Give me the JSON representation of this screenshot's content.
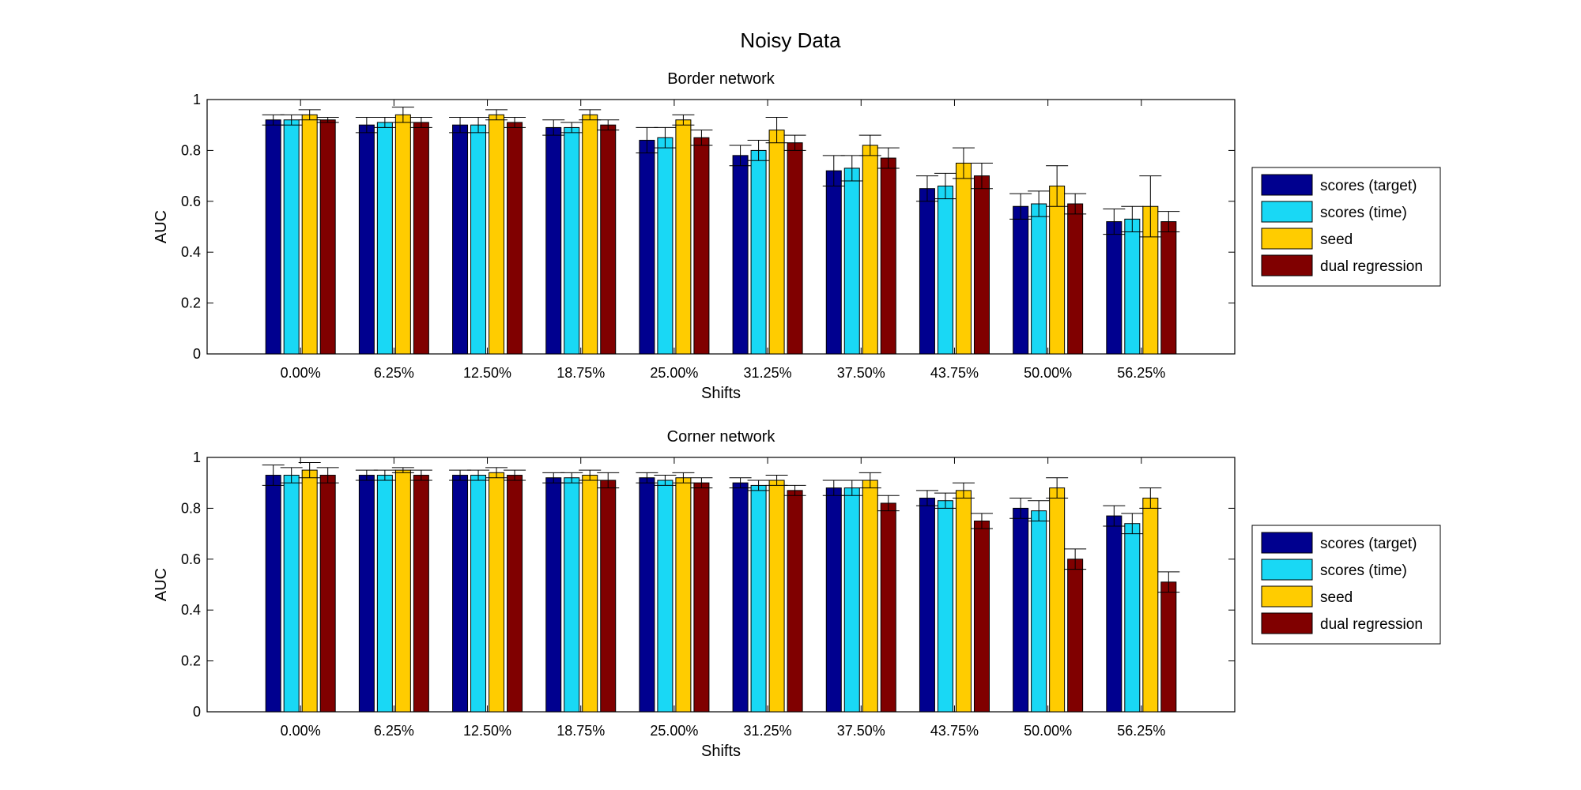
{
  "figure": {
    "title": "Noisy Data"
  },
  "colors": {
    "scores_target": "#00008f",
    "scores_time": "#19d8f5",
    "seed": "#ffcc00",
    "dual_regression": "#800000"
  },
  "chart_data": [
    {
      "type": "bar",
      "title": "Border network",
      "xlabel": "Shifts",
      "ylabel": "AUC",
      "ylim": [
        0,
        1
      ],
      "yticks": [
        "0",
        "0.2",
        "0.4",
        "0.6",
        "0.8",
        "1"
      ],
      "grid": false,
      "legend": "right",
      "categories": [
        "0.00%",
        "6.25%",
        "12.50%",
        "18.75%",
        "25.00%",
        "31.25%",
        "37.50%",
        "43.75%",
        "50.00%",
        "56.25%"
      ],
      "series": [
        {
          "name": "scores (target)",
          "values": [
            0.92,
            0.9,
            0.9,
            0.89,
            0.84,
            0.78,
            0.72,
            0.65,
            0.58,
            0.52
          ],
          "errors": [
            0.02,
            0.03,
            0.03,
            0.03,
            0.05,
            0.04,
            0.06,
            0.05,
            0.05,
            0.05
          ]
        },
        {
          "name": "scores (time)",
          "values": [
            0.92,
            0.91,
            0.9,
            0.89,
            0.85,
            0.8,
            0.73,
            0.66,
            0.59,
            0.53
          ],
          "errors": [
            0.02,
            0.02,
            0.03,
            0.02,
            0.04,
            0.04,
            0.05,
            0.05,
            0.05,
            0.05
          ]
        },
        {
          "name": "seed",
          "values": [
            0.94,
            0.94,
            0.94,
            0.94,
            0.92,
            0.88,
            0.82,
            0.75,
            0.66,
            0.58
          ],
          "errors": [
            0.02,
            0.03,
            0.02,
            0.02,
            0.02,
            0.05,
            0.04,
            0.06,
            0.08,
            0.12
          ]
        },
        {
          "name": "dual regression",
          "values": [
            0.92,
            0.91,
            0.91,
            0.9,
            0.85,
            0.83,
            0.77,
            0.7,
            0.59,
            0.52
          ],
          "errors": [
            0.01,
            0.02,
            0.02,
            0.02,
            0.03,
            0.03,
            0.04,
            0.05,
            0.04,
            0.04
          ]
        }
      ]
    },
    {
      "type": "bar",
      "title": "Corner network",
      "xlabel": "Shifts",
      "ylabel": "AUC",
      "ylim": [
        0,
        1
      ],
      "yticks": [
        "0",
        "0.2",
        "0.4",
        "0.6",
        "0.8",
        "1"
      ],
      "grid": false,
      "legend": "right",
      "categories": [
        "0.00%",
        "6.25%",
        "12.50%",
        "18.75%",
        "25.00%",
        "31.25%",
        "37.50%",
        "43.75%",
        "50.00%",
        "56.25%"
      ],
      "series": [
        {
          "name": "scores (target)",
          "values": [
            0.93,
            0.93,
            0.93,
            0.92,
            0.92,
            0.9,
            0.88,
            0.84,
            0.8,
            0.77
          ],
          "errors": [
            0.04,
            0.02,
            0.02,
            0.02,
            0.02,
            0.02,
            0.03,
            0.03,
            0.04,
            0.04
          ]
        },
        {
          "name": "scores (time)",
          "values": [
            0.93,
            0.93,
            0.93,
            0.92,
            0.91,
            0.89,
            0.88,
            0.83,
            0.79,
            0.74
          ],
          "errors": [
            0.03,
            0.02,
            0.02,
            0.02,
            0.02,
            0.02,
            0.03,
            0.03,
            0.04,
            0.04
          ]
        },
        {
          "name": "seed",
          "values": [
            0.95,
            0.95,
            0.94,
            0.93,
            0.92,
            0.91,
            0.91,
            0.87,
            0.88,
            0.84
          ],
          "errors": [
            0.03,
            0.01,
            0.02,
            0.02,
            0.02,
            0.02,
            0.03,
            0.03,
            0.04,
            0.04
          ]
        },
        {
          "name": "dual regression",
          "values": [
            0.93,
            0.93,
            0.93,
            0.91,
            0.9,
            0.87,
            0.82,
            0.75,
            0.6,
            0.51
          ],
          "errors": [
            0.03,
            0.02,
            0.02,
            0.03,
            0.02,
            0.02,
            0.03,
            0.03,
            0.04,
            0.04
          ]
        }
      ]
    }
  ]
}
